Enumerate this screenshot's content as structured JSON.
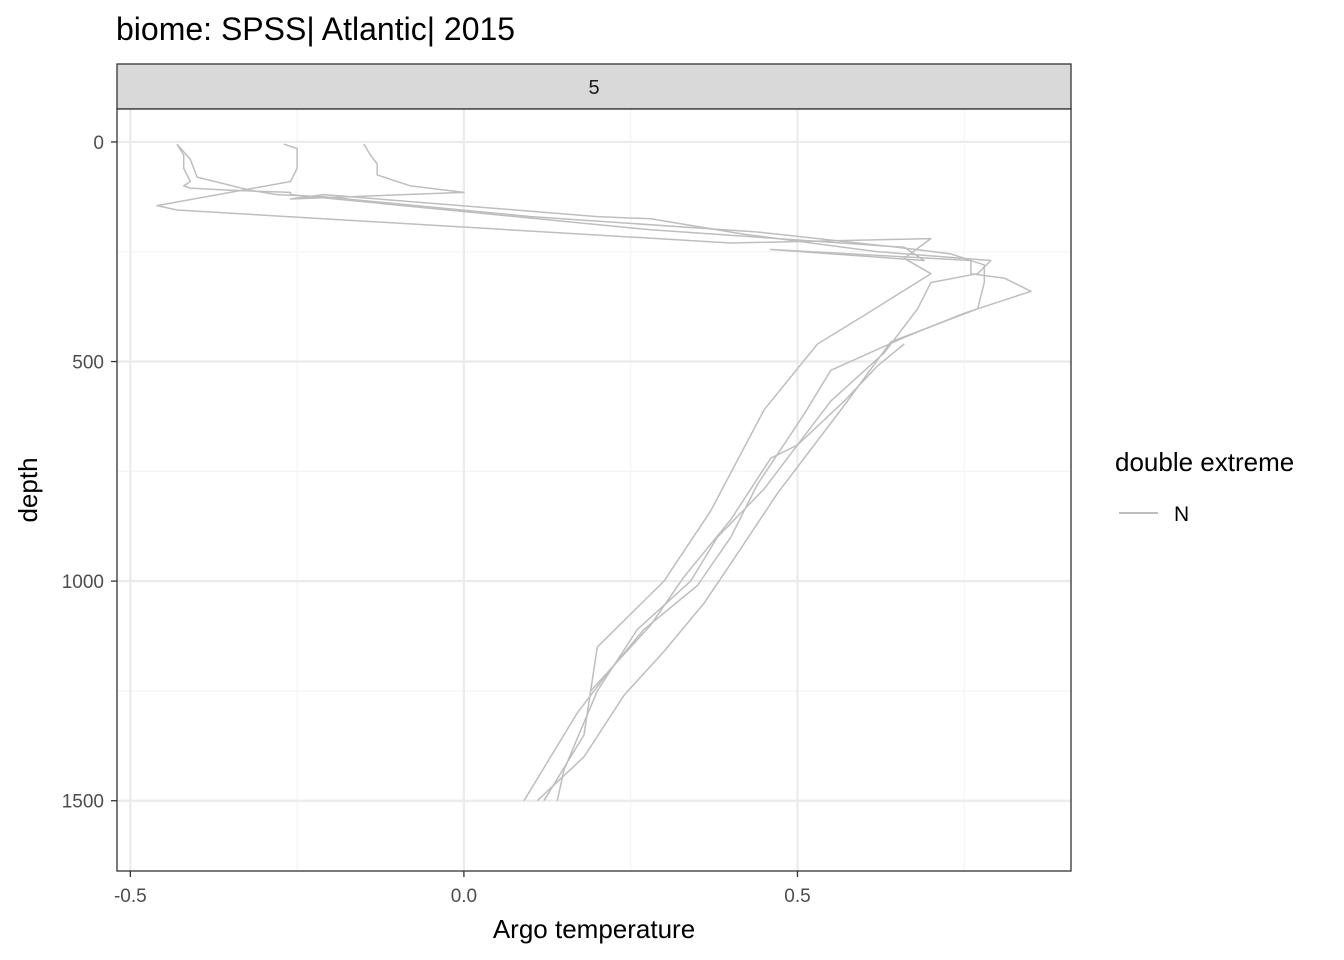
{
  "colors": {
    "line": "#bebebe",
    "grid_major": "#ebebeb",
    "grid_minor": "#f5f5f5",
    "strip_fill": "#d9d9d9",
    "panel_border": "#333333"
  },
  "chart_data": {
    "type": "line",
    "title": "biome: SPSS| Atlantic| 2015",
    "facet_label": "5",
    "xlabel": "Argo temperature",
    "ylabel": "depth",
    "xlim": [
      -0.52,
      0.91
    ],
    "ylim": [
      1660,
      -75
    ],
    "y_reversed": true,
    "x_ticks": [
      -0.5,
      0.0,
      0.5
    ],
    "x_tick_labels": [
      "-0.5",
      "0.0",
      "0.5"
    ],
    "x_minor_ticks": [
      -0.25,
      0.25,
      0.75
    ],
    "y_ticks": [
      0,
      500,
      1000,
      1500
    ],
    "y_tick_labels": [
      "0",
      "500",
      "1000",
      "1500"
    ],
    "y_minor_ticks": [
      250,
      750,
      1250
    ],
    "grid": true,
    "legend": {
      "title": "double extreme",
      "position": "right",
      "items": [
        {
          "label": "N"
        }
      ]
    },
    "series": [
      {
        "x": [
          -0.43,
          -0.42,
          -0.42,
          -0.41,
          -0.42,
          -0.41,
          -0.35,
          -0.26,
          -0.26,
          0.28,
          0.66,
          0.69,
          0.46,
          0.76,
          0.76,
          0.81,
          0.85,
          0.75,
          0.66,
          0.55,
          0.51,
          0.44,
          0.4,
          0.35,
          0.27,
          0.22,
          0.17,
          0.09
        ],
        "y": [
          5,
          30,
          60,
          90,
          100,
          105,
          110,
          115,
          120,
          200,
          240,
          270,
          245,
          270,
          300,
          310,
          340,
          390,
          445,
          520,
          620,
          780,
          900,
          1010,
          1110,
          1200,
          1300,
          1500
        ]
      },
      {
        "x": [
          -0.27,
          -0.25,
          -0.25,
          -0.26,
          -0.46,
          -0.43,
          0.4,
          0.7,
          0.66,
          0.7,
          0.6,
          0.53,
          0.45,
          0.37,
          0.3,
          0.2,
          0.18,
          0.12
        ],
        "y": [
          5,
          15,
          60,
          90,
          145,
          155,
          230,
          220,
          265,
          300,
          395,
          460,
          610,
          840,
          1000,
          1150,
          1350,
          1500
        ]
      },
      {
        "x": [
          -0.15,
          -0.14,
          -0.13,
          -0.13,
          -0.08,
          0.0,
          -0.26,
          -0.21,
          0.2,
          0.28,
          0.42,
          0.62,
          0.79,
          0.77,
          0.7,
          0.68,
          0.63,
          0.55,
          0.51,
          0.45,
          0.38,
          0.34,
          0.26,
          0.2,
          0.15,
          0.14
        ],
        "y": [
          5,
          30,
          50,
          75,
          100,
          115,
          130,
          120,
          170,
          175,
          210,
          250,
          270,
          300,
          320,
          380,
          480,
          590,
          670,
          790,
          900,
          1000,
          1110,
          1250,
          1430,
          1500
        ]
      },
      {
        "x": [
          -0.43,
          -0.41,
          -0.4,
          -0.32,
          -0.28,
          -0.21,
          0.1,
          0.44,
          0.65,
          0.73,
          0.78,
          0.78,
          0.77,
          0.64,
          0.57,
          0.54,
          0.47,
          0.4,
          0.36,
          0.3,
          0.24,
          0.21,
          0.18,
          0.11
        ],
        "y": [
          5,
          40,
          80,
          110,
          120,
          125,
          170,
          205,
          240,
          255,
          280,
          320,
          380,
          455,
          600,
          660,
          800,
          960,
          1050,
          1160,
          1260,
          1330,
          1400,
          1500
        ]
      },
      {
        "x": [
          0.66,
          0.62,
          0.57,
          0.5,
          0.46,
          0.4,
          0.33,
          0.28,
          0.19
        ],
        "y": [
          460,
          510,
          590,
          690,
          720,
          860,
          990,
          1100,
          1250
        ]
      }
    ]
  }
}
